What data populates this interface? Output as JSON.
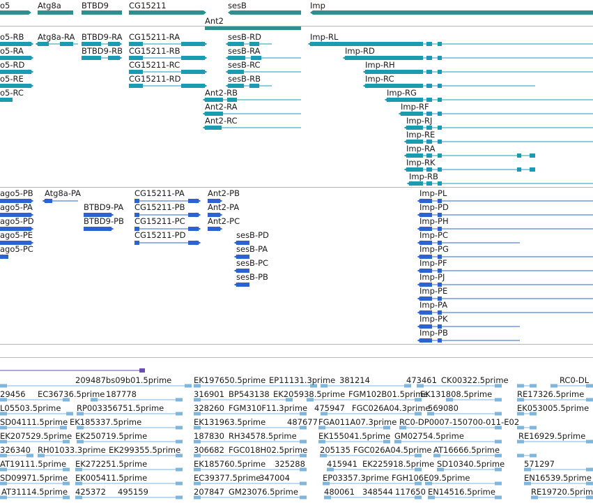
{
  "colors": {
    "gene": "#2e8e90",
    "transcript": "#1c9bb0",
    "protein": "#2c62d2",
    "est": "#7fb6dc",
    "est_text": "#1a1a1a",
    "separator": "#b8b8b8",
    "purple": "#6a4fae"
  },
  "gene_track": {
    "labels": [
      "o5",
      "Atg8a",
      "BTBD9",
      "CG15211",
      "sesB",
      "Imp",
      "Ant2"
    ]
  },
  "transcript_track": {
    "labels": [
      "o5-RB",
      "Atg8a-RA",
      "BTBD9-RA",
      "CG15211-RA",
      "sesB-RD",
      "Imp-RL",
      "o5-RA",
      "BTBD9-RB",
      "CG15211-RB",
      "sesB-RA",
      "Imp-RD",
      "o5-RD",
      "CG15211-RC",
      "sesB-RC",
      "Imp-RH",
      "o5-RE",
      "CG15211-RD",
      "sesB-RB",
      "Imp-RC",
      "o5-RC",
      "Ant2-RB",
      "Imp-RG",
      "Ant2-RA",
      "Imp-RF",
      "Ant2-RC",
      "Imp-RJ",
      "Imp-RE",
      "Imp-RA",
      "Imp-RK",
      "Imp-RB"
    ]
  },
  "protein_track": {
    "labels": [
      "ago5-PB",
      "Atg8a-PA",
      "CG15211-PA",
      "Ant2-PB",
      "Imp-PL",
      "ago5-PA",
      "BTBD9-PA",
      "CG15211-PB",
      "Ant2-PA",
      "Imp-PD",
      "ago5-PD",
      "BTBD9-PB",
      "CG15211-PC",
      "Ant2-PC",
      "Imp-PH",
      "ago5-PE",
      "CG15211-PD",
      "sesB-PD",
      "Imp-PC",
      "ago5-PC",
      "sesB-PA",
      "Imp-PG",
      "sesB-PC",
      "Imp-PF",
      "sesB-PB",
      "Imp-PJ",
      "Imp-PE",
      "Imp-PA",
      "Imp-PK",
      "Imp-PB"
    ]
  },
  "est_track": {
    "labels": [
      "209487bs09b01.5prime",
      "EK197650.5prime",
      "EP11131.3prime",
      "381214",
      "473461",
      "CK00322.5prime",
      "RC0-DL",
      "29456",
      "EC36736.5prime",
      "187778",
      "316901",
      "BP543138",
      "EK205938.5prime",
      "FGM102B01.5prime",
      "EK131808.5prime",
      "RE17326.5prime",
      "L05503.5prime",
      "RP003356751.5prime",
      "328260",
      "FGM310F11.3prime",
      "475947",
      "FGC026A04.3prime",
      "569080",
      "EK053005.5prime",
      "SD04111.5prime",
      "EK185337.5prime",
      "EK131963.5prime",
      "487677",
      "FGA011A07.3prime",
      "RC0-DP0007-150700-011-E02",
      "EK207529.5prime",
      "EK250719.5prime",
      "187830",
      "RH34578.5prime",
      "EK155041.5prime",
      "GM02754.5prime",
      "RE16929.5prime",
      "326340",
      "RH01033.3prime",
      "EK299355.5prime",
      "306682",
      "FGC018H02.5prime",
      "205135",
      "FGC026A04.5prime",
      "AT16666.5prime",
      "AT19111.5prime",
      "EK272251.5prime",
      "EK185760.5prime",
      "325288",
      "415941",
      "EK225918.5prime",
      "SD10340.5prime",
      "571297",
      "SD09971.5prime",
      "EK005411.5prime",
      "EC39377.5prime",
      "347004",
      "EP03357.3prime",
      "FGH106E09.5prime",
      "EN16539.5prime",
      "AT31114.5prime",
      "425372",
      "495159",
      "207847",
      "GM23076.5prime",
      "480061",
      "348544",
      "117650",
      "EN14516.5prime",
      "RE19720.5prime"
    ]
  }
}
